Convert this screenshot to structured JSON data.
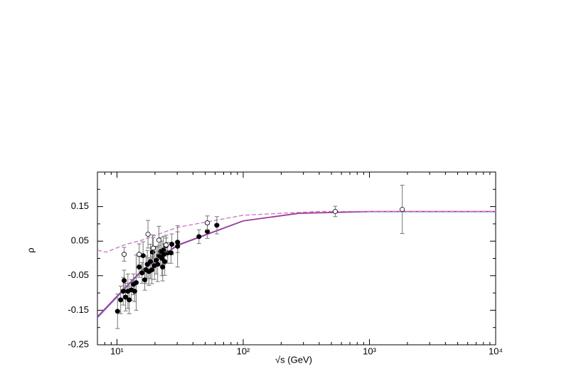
{
  "chart_data": {
    "type": "scatter",
    "x_label": "√s   (GeV)",
    "y_label": "ρ",
    "xscale": "log",
    "xlim": [
      7,
      10000
    ],
    "xticks": [
      {
        "value": 10,
        "label": "10¹"
      },
      {
        "value": 100,
        "label": "10²"
      },
      {
        "value": 1000,
        "label": "10³"
      },
      {
        "value": 10000,
        "label": "10⁴"
      }
    ],
    "xminor": [
      7,
      8,
      9,
      20,
      30,
      40,
      50,
      60,
      70,
      80,
      90,
      200,
      300,
      400,
      500,
      600,
      700,
      800,
      900,
      2000,
      3000,
      4000,
      5000,
      6000,
      7000,
      8000,
      9000
    ],
    "ylim": [
      -0.25,
      0.25
    ],
    "yticks": [
      -0.25,
      -0.15,
      -0.05,
      0.05,
      0.15
    ],
    "yminor": [
      -0.2,
      -0.1,
      0,
      0.1,
      0.2
    ],
    "series": [
      {
        "marker": "filled",
        "color": "#000000",
        "error_color": "#777777",
        "x": [
          10.1,
          10.7,
          11.2,
          11.4,
          11.7,
          12.2,
          12.5,
          13.0,
          13.5,
          13.8,
          14.2,
          15.0,
          15.8,
          16.1,
          16.6,
          17.0,
          17.4,
          17.9,
          18.4,
          18.9,
          19.1,
          19.8,
          20.4,
          21.0,
          21.5,
          22.1,
          22.7,
          23.0,
          23.3,
          23.5,
          23.9,
          24.5,
          25.2,
          26.8,
          27.2,
          30.2,
          30.2,
          44.6,
          52,
          61.8
        ],
        "y": [
          -0.153,
          -0.12,
          -0.095,
          -0.064,
          -0.112,
          -0.095,
          -0.12,
          -0.091,
          -0.075,
          -0.095,
          -0.07,
          -0.025,
          -0.042,
          0.008,
          -0.062,
          -0.033,
          -0.017,
          -0.038,
          -0.009,
          -0.033,
          0.018,
          -0.021,
          -0.005,
          -0.017,
          0.008,
          0.02,
          0,
          -0.025,
          0.024,
          0.012,
          -0.009,
          0.037,
          0.016,
          0.016,
          0.041,
          0.035,
          0.047,
          0.063,
          0.078,
          0.096
        ],
        "error": [
          0.05,
          0.04,
          0.04,
          0.03,
          0.04,
          0.05,
          0.04,
          0.03,
          0.03,
          0.03,
          0.08,
          0.03,
          0.03,
          0.04,
          0.03,
          0.04,
          0.04,
          0.04,
          0.05,
          0.04,
          0.05,
          0.04,
          0.04,
          0.05,
          0.03,
          0.04,
          0.05,
          0.04,
          0.04,
          0.03,
          0.04,
          0.03,
          0.03,
          0.03,
          0.03,
          0.06,
          0.03,
          0.02,
          0.02,
          0.025
        ]
      },
      {
        "marker": "open",
        "color": "#000000",
        "error_color": "#777777",
        "x": [
          11.4,
          15,
          17.6,
          19.4,
          21.5,
          24.5,
          52,
          536,
          1820
        ],
        "y": [
          0.012,
          0.012,
          0.07,
          0.03,
          0.053,
          0.039,
          0.103,
          0.136,
          0.142
        ],
        "error": [
          0.02,
          0.03,
          0.04,
          0.03,
          0.04,
          0.02,
          0.02,
          0.015,
          0.07
        ]
      }
    ],
    "curves": [
      {
        "style": "solid",
        "color": "#6666dd",
        "x": [
          7,
          15.8,
          30.2,
          100,
          275,
          1000,
          10000
        ],
        "y": [
          -0.172,
          -0.036,
          0.037,
          0.108,
          0.13,
          0.135,
          0.135
        ]
      },
      {
        "style": "solid",
        "color": "#b0307f",
        "x": [
          7,
          15.8,
          30.2,
          100,
          275,
          1000,
          10000
        ],
        "y": [
          -0.168,
          -0.033,
          0.039,
          0.109,
          0.131,
          0.136,
          0.136
        ]
      },
      {
        "style": "dashed",
        "color": "#d070c8",
        "x": [
          7,
          8.2,
          11.4,
          15.8,
          30.2,
          100,
          403,
          10000
        ],
        "y": [
          0.024,
          0.018,
          0.039,
          0.053,
          0.09,
          0.125,
          0.136,
          0.136
        ]
      }
    ]
  }
}
